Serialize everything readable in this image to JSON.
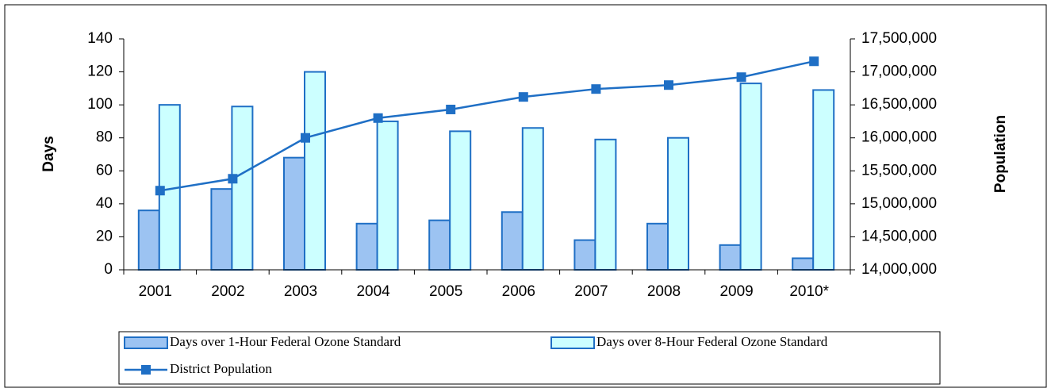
{
  "chart_data": {
    "type": "bar_line",
    "categories": [
      "2001",
      "2002",
      "2003",
      "2004",
      "2005",
      "2006",
      "2007",
      "2008",
      "2009",
      "2010*"
    ],
    "series": [
      {
        "name": "Days over 1-Hour Federal Ozone Standard",
        "color": "#9cc3f2",
        "values": [
          36,
          49,
          68,
          28,
          30,
          35,
          18,
          28,
          15,
          7
        ]
      },
      {
        "name": "Days over 8-Hour Federal Ozone Standard",
        "color": "#ccffff",
        "values": [
          100,
          99,
          120,
          90,
          84,
          86,
          79,
          80,
          113,
          109
        ]
      },
      {
        "name": "District Population",
        "color": "#1f6fc5",
        "axis": "y2",
        "values": [
          15200000,
          15380000,
          16000000,
          16300000,
          16430000,
          16620000,
          16740000,
          16800000,
          16920000,
          17160000
        ]
      }
    ],
    "ylabel": "Days",
    "y2label": "Population",
    "ylim": [
      0,
      140
    ],
    "yticks": [
      0,
      20,
      40,
      60,
      80,
      100,
      120,
      140
    ],
    "y2lim": [
      14000000,
      17500000
    ],
    "y2ticks": [
      {
        "value": 14000000,
        "label": "14,000,000"
      },
      {
        "value": 14500000,
        "label": "14,500,000"
      },
      {
        "value": 15000000,
        "label": "15,000,000"
      },
      {
        "value": 15500000,
        "label": "15,500,000"
      },
      {
        "value": 16000000,
        "label": "16,000,000"
      },
      {
        "value": 16500000,
        "label": "16,500,000"
      },
      {
        "value": 17000000,
        "label": "17,000,000"
      },
      {
        "value": 17500000,
        "label": "17,500,000"
      }
    ],
    "edge_color": "#1f6fc5",
    "legend": "bottom"
  }
}
